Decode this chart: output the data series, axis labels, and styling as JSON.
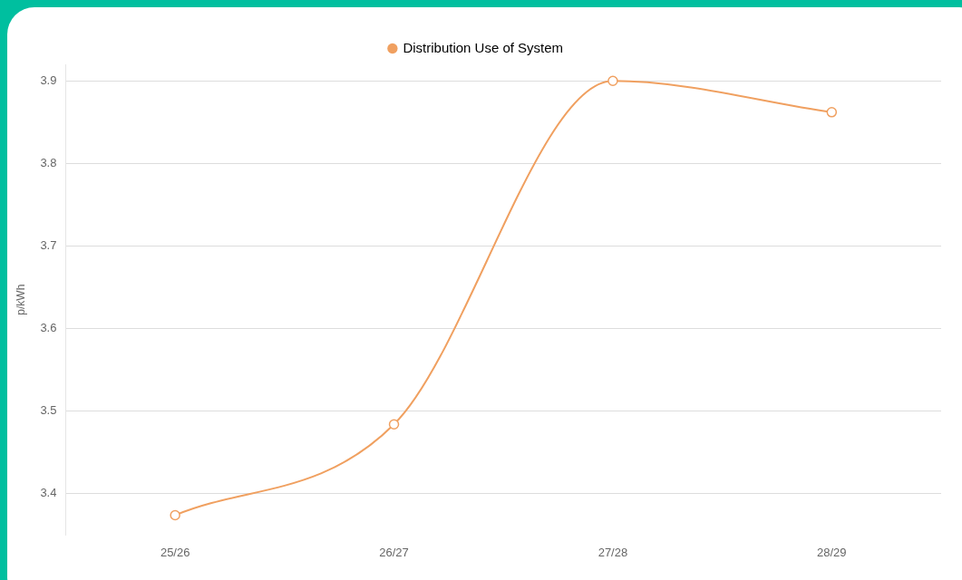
{
  "chart_data": {
    "type": "line",
    "ylabel": "p/kWh",
    "categories": [
      "25/26",
      "26/27",
      "27/28",
      "28/29"
    ],
    "series": [
      {
        "name": "Distribution Use of System",
        "color": "#f0a060",
        "values": [
          3.374,
          3.484,
          3.9,
          3.862
        ]
      }
    ],
    "ylim": [
      3.35,
      3.92
    ],
    "yticks": [
      3.4,
      3.5,
      3.6,
      3.7,
      3.8,
      3.9
    ],
    "grid": "y",
    "legend": "top",
    "marker": "circle",
    "line_style": "solid"
  }
}
